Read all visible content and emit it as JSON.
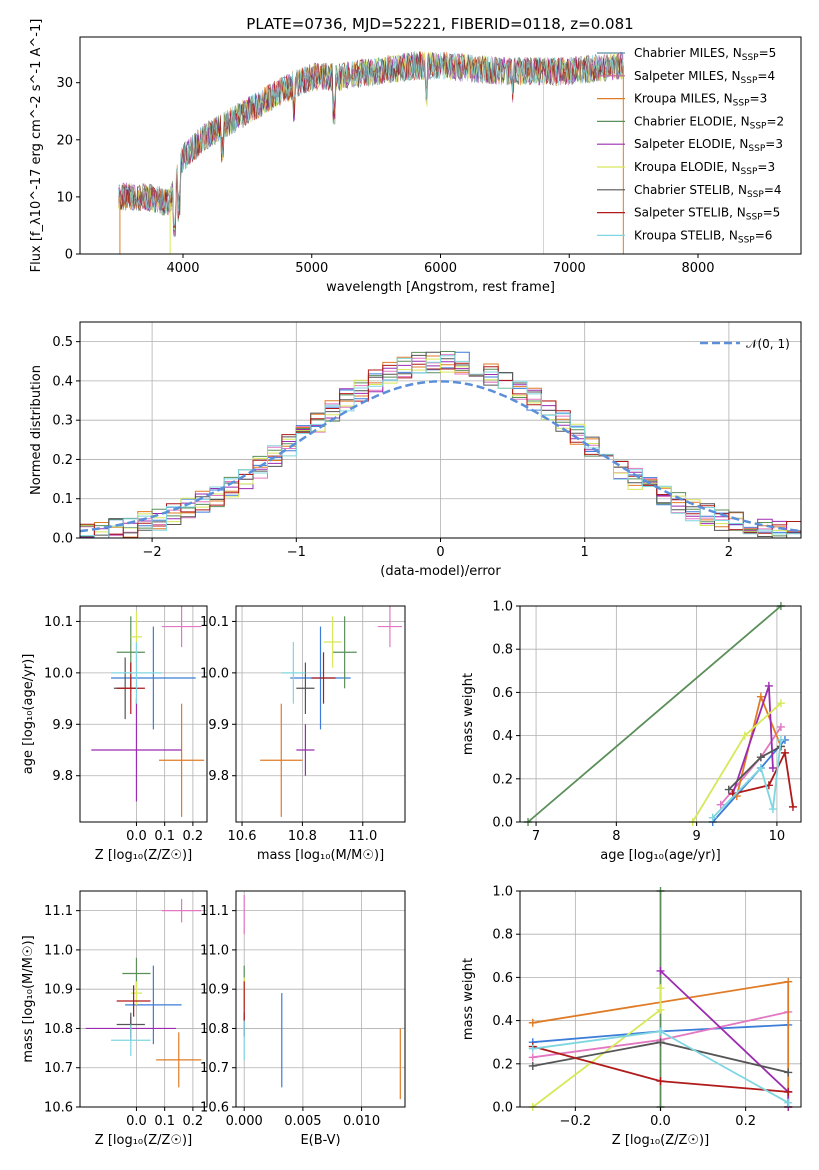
{
  "figure": {
    "title": "PLATE=0736, MJD=52221, FIBERID=0118, z=0.081"
  },
  "colors": {
    "chabrier_miles": "#3b7dd8",
    "salpeter_miles": "#e377c2",
    "kroupa_miles": "#e07b25",
    "chabrier_elodie": "#5a8f5a",
    "salpeter_elodie": "#9b2cb0",
    "kroupa_elodie": "#d7e85a",
    "chabrier_stelib": "#555555",
    "salpeter_stelib": "#b01a1a",
    "kroupa_stelib": "#7fd6e0"
  },
  "chart_data": [
    {
      "id": "spectrum",
      "type": "line",
      "xlabel": "wavelength [Angstrom, rest frame]",
      "ylabel": "Flux [f_λ10^-17 erg cm^-2 s^-1 A^-1]",
      "xlim": [
        3200,
        8800
      ],
      "ylim": [
        0,
        38
      ],
      "xticks": [
        4000,
        5000,
        6000,
        7000,
        8000
      ],
      "yticks": [
        0,
        10,
        20,
        30
      ],
      "grid": false,
      "legend_position": "right",
      "series": [
        {
          "name": "Chabrier MILES, N",
          "sub": "SSP",
          "suffix": "=5",
          "color": "#5c8fa6"
        },
        {
          "name": "Salpeter MILES, N",
          "sub": "SSP",
          "suffix": "=4",
          "color": "#c46a9a"
        },
        {
          "name": "Kroupa MILES, N",
          "sub": "SSP",
          "suffix": "=3",
          "color": "#e07b25"
        },
        {
          "name": "Chabrier ELODIE, N",
          "sub": "SSP",
          "suffix": "=2",
          "color": "#5a8f5a"
        },
        {
          "name": "Salpeter ELODIE, N",
          "sub": "SSP",
          "suffix": "=3",
          "color": "#9b2cb0"
        },
        {
          "name": "Kroupa ELODIE, N",
          "sub": "SSP",
          "suffix": "=3",
          "color": "#d7e85a"
        },
        {
          "name": "Chabrier STELIB, N",
          "sub": "SSP",
          "suffix": "=4",
          "color": "#555555"
        },
        {
          "name": "Salpeter STELIB, N",
          "sub": "SSP",
          "suffix": "=5",
          "color": "#b01a1a"
        },
        {
          "name": "Kroupa STELIB, N",
          "sub": "SSP",
          "suffix": "=6",
          "color": "#7fd6e0"
        }
      ],
      "continuum": {
        "x": [
          3500,
          3700,
          3900,
          4000,
          4200,
          4500,
          4800,
          5000,
          5200,
          5500,
          5800,
          6000,
          6500,
          7000,
          7400
        ],
        "y": [
          10,
          10,
          9,
          17,
          21,
          25,
          29,
          31,
          31,
          32,
          33,
          33,
          32,
          32,
          33
        ]
      }
    },
    {
      "id": "residuals",
      "type": "area",
      "xlabel": "(data-model)/error",
      "ylabel": "Normed distribution",
      "xlim": [
        -2.5,
        2.5
      ],
      "ylim": [
        0,
        0.55
      ],
      "xticks": [
        -2,
        -1,
        0,
        1,
        2
      ],
      "xticklabels": [
        "−2",
        "−1",
        "0",
        "1",
        "2"
      ],
      "yticks": [
        0.0,
        0.1,
        0.2,
        0.3,
        0.4,
        0.5
      ],
      "yticklabels": [
        "0.0",
        "0.1",
        "0.2",
        "0.3",
        "0.4",
        "0.5"
      ],
      "grid": true,
      "legend_position": "top-right",
      "legend": "𝒩(0, 1)",
      "bin_width": 0.1,
      "bin_start": -2.5
    },
    {
      "id": "age-vs-Z",
      "type": "scatter",
      "xlabel": "Z [log₁₀(Z/Z☉)]",
      "ylabel": "age [log₁₀(age/yr)]",
      "xlim": [
        -0.2,
        0.25
      ],
      "ylim": [
        9.71,
        10.13
      ],
      "xticks": [
        0.0,
        0.1,
        0.2
      ],
      "xticklabels": [
        "0.0",
        "0.1",
        "0.2"
      ],
      "yticks": [
        9.8,
        9.9,
        10.0,
        10.1
      ],
      "yticklabels": [
        "9.8",
        "9.9",
        "10.0",
        "10.1"
      ],
      "grid": true,
      "points": [
        {
          "x": 0.06,
          "y": 9.99,
          "xerr": 0.15,
          "yerr": 0.1,
          "color": "#3b7dd8"
        },
        {
          "x": 0.16,
          "y": 10.09,
          "xerr": 0.07,
          "yerr": 0.04,
          "color": "#e377c2"
        },
        {
          "x": 0.16,
          "y": 9.83,
          "xerr": 0.08,
          "yerr": 0.11,
          "color": "#e07b25"
        },
        {
          "x": -0.02,
          "y": 10.04,
          "xerr": 0.05,
          "yerr": 0.07,
          "color": "#5a8f5a"
        },
        {
          "x": 0.0,
          "y": 9.85,
          "xerr": 0.16,
          "yerr": 0.1,
          "color": "#9b2cb0"
        },
        {
          "x": 0.0,
          "y": 10.07,
          "xerr": 0.02,
          "yerr": 0.05,
          "color": "#d7e85a"
        },
        {
          "x": -0.04,
          "y": 9.97,
          "xerr": 0.04,
          "yerr": 0.06,
          "color": "#555555"
        },
        {
          "x": -0.02,
          "y": 9.97,
          "xerr": 0.05,
          "yerr": 0.05,
          "color": "#b01a1a"
        },
        {
          "x": 0.0,
          "y": 10.0,
          "xerr": 0.09,
          "yerr": 0.06,
          "color": "#7fd6e0"
        }
      ]
    },
    {
      "id": "age-vs-mass",
      "type": "scatter",
      "xlabel": "mass [log₁₀(M/M☉)]",
      "ylabel": "",
      "xlim": [
        10.58,
        11.14
      ],
      "ylim": [
        9.71,
        10.13
      ],
      "xticks": [
        10.6,
        10.8,
        11.0
      ],
      "xticklabels": [
        "10.6",
        "10.8",
        "11.0"
      ],
      "yticks": [
        9.8,
        9.9,
        10.0,
        10.1
      ],
      "yticklabels": [
        "9.8",
        "9.9",
        "10.0",
        "10.1"
      ],
      "grid": true,
      "points": [
        {
          "x": 10.86,
          "y": 9.99,
          "xerr": 0.1,
          "yerr": 0.1,
          "color": "#3b7dd8"
        },
        {
          "x": 11.09,
          "y": 10.09,
          "xerr": 0.04,
          "yerr": 0.04,
          "color": "#e377c2"
        },
        {
          "x": 10.73,
          "y": 9.83,
          "xerr": 0.07,
          "yerr": 0.11,
          "color": "#e07b25"
        },
        {
          "x": 10.94,
          "y": 10.04,
          "xerr": 0.04,
          "yerr": 0.07,
          "color": "#5a8f5a"
        },
        {
          "x": 10.81,
          "y": 9.85,
          "xerr": 0.03,
          "yerr": 0.05,
          "color": "#9b2cb0"
        },
        {
          "x": 10.9,
          "y": 10.06,
          "xerr": 0.03,
          "yerr": 0.05,
          "color": "#d7e85a"
        },
        {
          "x": 10.81,
          "y": 9.97,
          "xerr": 0.03,
          "yerr": 0.05,
          "color": "#555555"
        },
        {
          "x": 10.87,
          "y": 9.99,
          "xerr": 0.04,
          "yerr": 0.05,
          "color": "#b01a1a"
        },
        {
          "x": 10.77,
          "y": 10.0,
          "xerr": 0.04,
          "yerr": 0.06,
          "color": "#7fd6e0"
        }
      ]
    },
    {
      "id": "weight-vs-age",
      "type": "line",
      "xlabel": "age [log₁₀(age/yr)]",
      "ylabel": "mass weight",
      "xlim": [
        6.8,
        10.3
      ],
      "ylim": [
        0.0,
        1.0
      ],
      "xticks": [
        7,
        8,
        9,
        10
      ],
      "xticklabels": [
        "7",
        "8",
        "9",
        "10"
      ],
      "yticks": [
        0.0,
        0.2,
        0.4,
        0.6,
        0.8,
        1.0
      ],
      "yticklabels": [
        "0.0",
        "0.2",
        "0.4",
        "0.6",
        "0.8",
        "1.0"
      ],
      "grid": true,
      "series": [
        {
          "color": "#5a8f5a",
          "x": [
            6.9,
            10.05
          ],
          "y": [
            0.0,
            1.0
          ]
        },
        {
          "color": "#3b7dd8",
          "x": [
            9.2,
            9.8,
            10.1
          ],
          "y": [
            0.0,
            0.25,
            0.38
          ]
        },
        {
          "color": "#e377c2",
          "x": [
            9.3,
            9.8,
            10.05
          ],
          "y": [
            0.08,
            0.3,
            0.44
          ]
        },
        {
          "color": "#e07b25",
          "x": [
            9.5,
            9.8,
            10.05
          ],
          "y": [
            0.12,
            0.58,
            0.35
          ]
        },
        {
          "color": "#9b2cb0",
          "x": [
            9.45,
            9.9,
            9.95
          ],
          "y": [
            0.13,
            0.63,
            0.25
          ]
        },
        {
          "color": "#d7e85a",
          "x": [
            8.95,
            9.6,
            10.05
          ],
          "y": [
            0.0,
            0.4,
            0.55
          ]
        },
        {
          "color": "#555555",
          "x": [
            9.4,
            9.8,
            10.05
          ],
          "y": [
            0.15,
            0.3,
            0.35
          ]
        },
        {
          "color": "#b01a1a",
          "x": [
            9.45,
            9.9,
            10.1,
            10.2
          ],
          "y": [
            0.13,
            0.17,
            0.32,
            0.07
          ]
        },
        {
          "color": "#7fd6e0",
          "x": [
            9.2,
            9.8,
            9.95,
            10.05
          ],
          "y": [
            0.02,
            0.25,
            0.06,
            0.38
          ]
        }
      ]
    },
    {
      "id": "mass-vs-Z",
      "type": "scatter",
      "xlabel": "Z [log₁₀(Z/Z☉)]",
      "ylabel": "mass [log₁₀(M/M☉)]",
      "xlim": [
        -0.2,
        0.25
      ],
      "ylim": [
        10.6,
        11.15
      ],
      "xticks": [
        0.0,
        0.1,
        0.2
      ],
      "xticklabels": [
        "0.0",
        "0.1",
        "0.2"
      ],
      "yticks": [
        10.6,
        10.7,
        10.8,
        10.9,
        11.0,
        11.1
      ],
      "yticklabels": [
        "10.6",
        "10.7",
        "10.8",
        "10.9",
        "11.0",
        "11.1"
      ],
      "grid": true,
      "points": [
        {
          "x": 0.06,
          "y": 10.86,
          "xerr": 0.1,
          "yerr": 0.1,
          "color": "#3b7dd8"
        },
        {
          "x": 0.16,
          "y": 11.1,
          "xerr": 0.07,
          "yerr": 0.03,
          "color": "#e377c2"
        },
        {
          "x": 0.15,
          "y": 10.72,
          "xerr": 0.08,
          "yerr": 0.07,
          "color": "#e07b25"
        },
        {
          "x": 0.0,
          "y": 10.94,
          "xerr": 0.05,
          "yerr": 0.04,
          "color": "#5a8f5a"
        },
        {
          "x": -0.02,
          "y": 10.8,
          "xerr": 0.16,
          "yerr": 0.03,
          "color": "#9b2cb0"
        },
        {
          "x": 0.0,
          "y": 10.89,
          "xerr": 0.02,
          "yerr": 0.03,
          "color": "#d7e85a"
        },
        {
          "x": -0.02,
          "y": 10.81,
          "xerr": 0.05,
          "yerr": 0.03,
          "color": "#555555"
        },
        {
          "x": -0.01,
          "y": 10.87,
          "xerr": 0.06,
          "yerr": 0.04,
          "color": "#b01a1a"
        },
        {
          "x": -0.02,
          "y": 10.77,
          "xerr": 0.07,
          "yerr": 0.04,
          "color": "#7fd6e0"
        }
      ]
    },
    {
      "id": "mass-vs-EBV",
      "type": "scatter",
      "xlabel": "E(B-V)",
      "ylabel": "",
      "xlim": [
        -0.0007,
        0.0137
      ],
      "ylim": [
        10.6,
        11.15
      ],
      "xticks": [
        0.0,
        0.005,
        0.01
      ],
      "xticklabels": [
        "0.000",
        "0.005",
        "0.010"
      ],
      "yticks": [
        10.6,
        10.7,
        10.8,
        10.9,
        11.0,
        11.1
      ],
      "yticklabels": [
        "10.6",
        "10.7",
        "10.8",
        "10.9",
        "11.0",
        "11.1"
      ],
      "grid": true,
      "points": [
        {
          "x": 0.0032,
          "y": 10.77,
          "xerr": 0,
          "yerr": 0.12,
          "color": "#3b7dd8"
        },
        {
          "x": 0.0,
          "y": 11.09,
          "xerr": 0,
          "yerr": 0.05,
          "color": "#e377c2"
        },
        {
          "x": 0.0133,
          "y": 10.71,
          "xerr": 0,
          "yerr": 0.09,
          "color": "#e07b25"
        },
        {
          "x": 0.0,
          "y": 10.94,
          "xerr": 0,
          "yerr": 0.02,
          "color": "#5a8f5a"
        },
        {
          "x": 0.0,
          "y": 10.8,
          "xerr": 0,
          "yerr": 0.02,
          "color": "#9b2cb0"
        },
        {
          "x": 0.0,
          "y": 10.89,
          "xerr": 0,
          "yerr": 0.04,
          "color": "#d7e85a"
        },
        {
          "x": 0.0,
          "y": 10.81,
          "xerr": 0,
          "yerr": 0.03,
          "color": "#555555"
        },
        {
          "x": 0.0,
          "y": 10.87,
          "xerr": 0,
          "yerr": 0.05,
          "color": "#b01a1a"
        },
        {
          "x": 0.0,
          "y": 10.77,
          "xerr": 0,
          "yerr": 0.05,
          "color": "#7fd6e0"
        }
      ]
    },
    {
      "id": "weight-vs-Z",
      "type": "line",
      "xlabel": "Z [log₁₀(Z/Z☉)]",
      "ylabel": "mass weight",
      "xlim": [
        -0.33,
        0.33
      ],
      "ylim": [
        0.0,
        1.0
      ],
      "xticks": [
        -0.2,
        0.0,
        0.2
      ],
      "xticklabels": [
        "−0.2",
        "0.0",
        "0.2"
      ],
      "yticks": [
        0.0,
        0.2,
        0.4,
        0.6,
        0.8,
        1.0
      ],
      "yticklabels": [
        "0.0",
        "0.2",
        "0.4",
        "0.6",
        "0.8",
        "1.0"
      ],
      "grid": true,
      "series": [
        {
          "color": "#5a8f5a",
          "x": [
            0.0,
            0.0
          ],
          "y": [
            0.0,
            1.0
          ]
        },
        {
          "color": "#3b7dd8",
          "x": [
            -0.3,
            0.0,
            0.3
          ],
          "y": [
            0.3,
            0.35,
            0.38
          ]
        },
        {
          "color": "#e377c2",
          "x": [
            -0.3,
            0.0,
            0.3
          ],
          "y": [
            0.23,
            0.31,
            0.44
          ]
        },
        {
          "color": "#e07b25",
          "x": [
            -0.3,
            0.3,
            0.3
          ],
          "y": [
            0.39,
            0.58,
            0.0
          ]
        },
        {
          "color": "#9b2cb0",
          "x": [
            0.0,
            0.3,
            0.3
          ],
          "y": [
            0.63,
            0.07,
            0.0
          ]
        },
        {
          "color": "#d7e85a",
          "x": [
            -0.3,
            0.0,
            0.0
          ],
          "y": [
            0.0,
            0.45,
            0.55
          ]
        },
        {
          "color": "#555555",
          "x": [
            -0.3,
            0.0,
            0.3
          ],
          "y": [
            0.19,
            0.3,
            0.16
          ]
        },
        {
          "color": "#b01a1a",
          "x": [
            -0.3,
            0.0,
            0.3
          ],
          "y": [
            0.28,
            0.12,
            0.07
          ]
        },
        {
          "color": "#7fd6e0",
          "x": [
            -0.3,
            0.0,
            0.3
          ],
          "y": [
            0.27,
            0.35,
            0.02
          ]
        }
      ]
    }
  ]
}
